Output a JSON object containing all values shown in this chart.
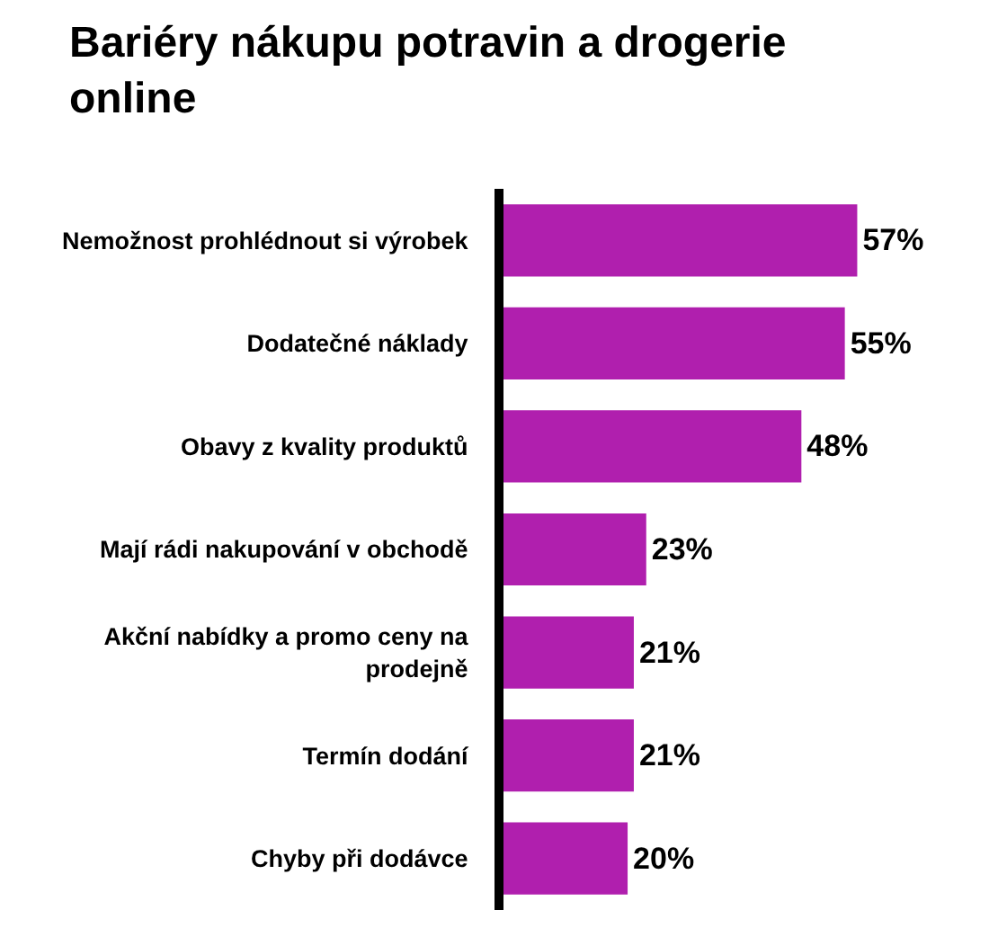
{
  "chart_data": {
    "type": "bar",
    "orientation": "horizontal",
    "title": "Bariéry nákupu potravin a drogerie\nonline",
    "categories": [
      "Nemožnost prohlédnout si výrobek",
      "Dodatečné náklady",
      "Obavy z kvality produktů",
      "Mají rádi nakupování v obchodě",
      "Akční nabídky a promo ceny na\nprodejně",
      "Termín dodání",
      "Chyby při dodávce"
    ],
    "values": [
      57,
      55,
      48,
      23,
      21,
      21,
      20
    ],
    "value_labels": [
      "57%",
      "55%",
      "48%",
      "23%",
      "21%",
      "21%",
      "20%"
    ],
    "color": "#b01fae",
    "grid": false,
    "legend": false
  }
}
